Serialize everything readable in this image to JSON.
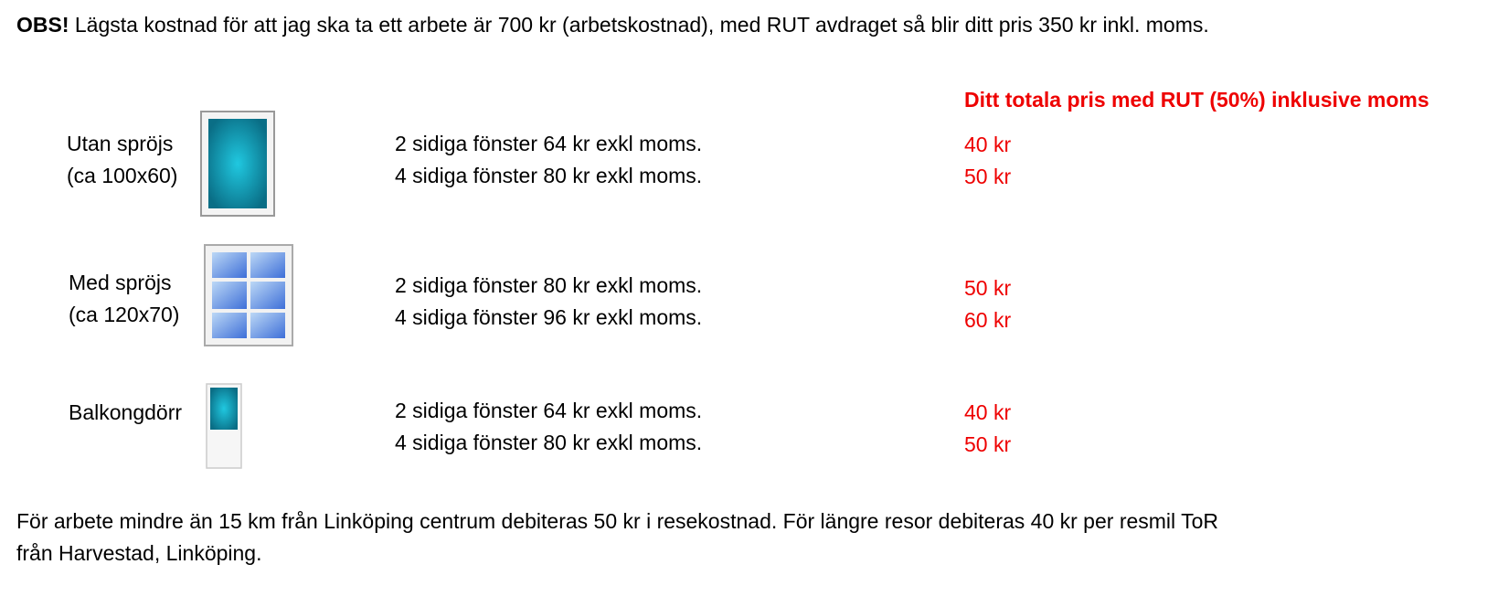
{
  "notice": {
    "label": "OBS!",
    "text": "Lägsta kostnad för att jag ska ta ett arbete är 700 kr (arbetskostnad), med RUT avdraget så blir ditt pris 350 kr inkl. moms."
  },
  "price_header": "Ditt totala pris med RUT (50%) inklusive moms",
  "items": [
    {
      "name": "Utan spröjs",
      "size": "(ca 100x60)",
      "rows": [
        {
          "description": "2 sidiga fönster 64 kr exkl moms.",
          "price": "40 kr"
        },
        {
          "description": "4 sidiga fönster 80 kr exkl moms.",
          "price": "50 kr"
        }
      ]
    },
    {
      "name": "Med spröjs",
      "size": "(ca 120x70)",
      "rows": [
        {
          "description": "2 sidiga fönster 80 kr exkl moms.",
          "price": "50 kr"
        },
        {
          "description": "4 sidiga fönster 96 kr exkl moms.",
          "price": "60 kr"
        }
      ]
    },
    {
      "name": "Balkongdörr",
      "rows": [
        {
          "description": "2 sidiga fönster 64 kr exkl moms.",
          "price": "40 kr"
        },
        {
          "description": "4 sidiga fönster 80 kr exkl moms.",
          "price": "50 kr"
        }
      ]
    }
  ],
  "footer": "För arbete mindre än 15 km från Linköping centrum debiteras 50 kr i resekostnad. För längre resor debiteras 40 kr per resmil ToR från Harvestad, Linköping."
}
